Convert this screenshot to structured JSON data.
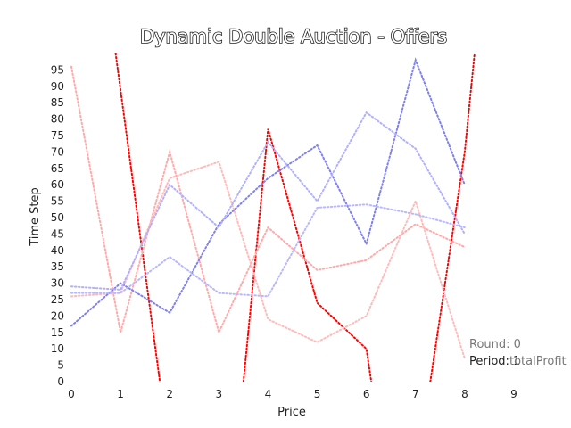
{
  "chart_data": {
    "type": "line",
    "title": "Dynamic Double Auction - Offers",
    "xlabel": "Price",
    "ylabel": "Time Step",
    "xlim": [
      0,
      9
    ],
    "ylim": [
      0,
      100
    ],
    "xticks": [
      0,
      1,
      2,
      3,
      4,
      5,
      6,
      7,
      8,
      9
    ],
    "yticks": [
      0,
      5,
      10,
      15,
      20,
      25,
      30,
      35,
      40,
      45,
      50,
      55,
      60,
      65,
      70,
      75,
      80,
      85,
      90,
      95
    ],
    "grid": false,
    "line_style": "dotted",
    "series": [
      {
        "color": "#ff0000",
        "x": [
          0.9,
          1.8
        ],
        "y": [
          100,
          0
        ]
      },
      {
        "color": "#ff0000",
        "x": [
          3.5,
          4,
          5,
          6,
          6.1
        ],
        "y": [
          0,
          77,
          24,
          10,
          0
        ]
      },
      {
        "color": "#ff0000",
        "x": [
          7.3,
          8,
          8.2
        ],
        "y": [
          0,
          70,
          100
        ]
      },
      {
        "color": "#ffaaaa",
        "x": [
          0,
          1,
          2,
          3,
          4,
          5,
          6,
          7,
          8
        ],
        "y": [
          96,
          15,
          70,
          15,
          47,
          34,
          37,
          48,
          41
        ]
      },
      {
        "color": "#ffbbbb",
        "x": [
          0,
          1,
          2,
          3,
          4,
          5,
          6,
          7,
          8
        ],
        "y": [
          26,
          27,
          62,
          67,
          19,
          12,
          20,
          55,
          7
        ]
      },
      {
        "color": "#8080ee",
        "x": [
          0,
          1,
          2,
          3,
          4,
          5,
          6,
          7,
          8
        ],
        "y": [
          17,
          30,
          21,
          48,
          62,
          72,
          42,
          98,
          60
        ]
      },
      {
        "color": "#b0b0ff",
        "x": [
          0,
          1,
          2,
          3,
          4,
          5,
          6,
          7,
          8
        ],
        "y": [
          29,
          28,
          60,
          47,
          73,
          55,
          82,
          71,
          45
        ]
      },
      {
        "color": "#b8b8ff",
        "x": [
          0,
          1,
          2,
          3,
          4,
          5,
          6,
          7,
          8
        ],
        "y": [
          27,
          27,
          38,
          27,
          26,
          53,
          54,
          51,
          47
        ]
      }
    ],
    "annotations": [
      {
        "text": "Round: 0",
        "color": "#777777"
      },
      {
        "text": "Period: 1",
        "color": "#222222"
      },
      {
        "text": "totalProfit",
        "color": "#777777"
      }
    ]
  }
}
